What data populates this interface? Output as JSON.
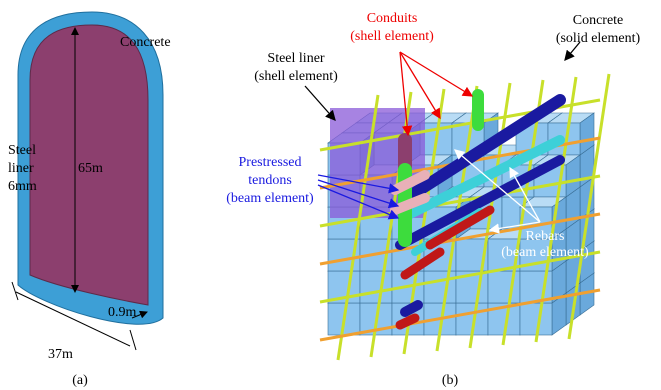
{
  "figure_a": {
    "label": "(a)",
    "concrete": "Concrete",
    "steel_liner": [
      "Steel",
      "liner",
      "6mm"
    ],
    "height": "65m",
    "diameter": "37m",
    "thickness": "0.9m"
  },
  "figure_b": {
    "label": "(b)",
    "conduits": [
      "Conduits",
      "(shell element)"
    ],
    "concrete": [
      "Concrete",
      "(solid element)"
    ],
    "steel_liner": [
      "Steel liner",
      "(shell element)"
    ],
    "tendons": [
      "Prestressed",
      "tendons",
      "(beam element)"
    ],
    "rebars": [
      "Rebars",
      "(beam element)"
    ]
  }
}
